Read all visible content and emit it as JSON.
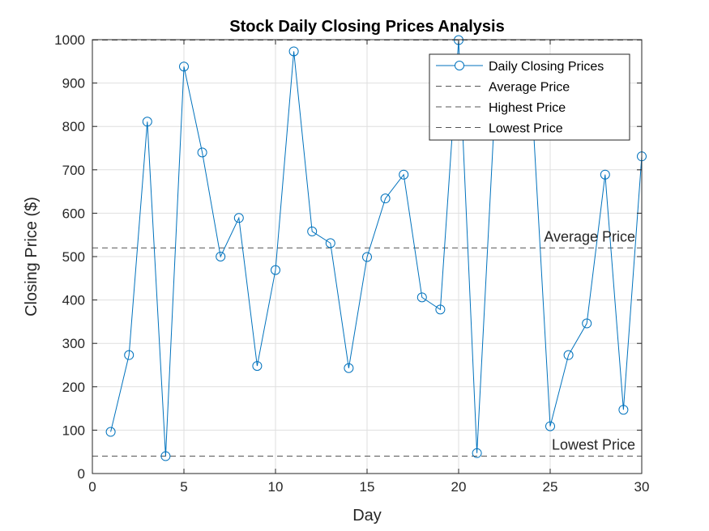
{
  "chart_data": {
    "type": "line",
    "title": "Stock Daily Closing Prices Analysis",
    "xlabel": "Day",
    "ylabel": "Closing Price ($)",
    "xlim": [
      0,
      30
    ],
    "ylim": [
      0,
      1000
    ],
    "xticks": [
      0,
      5,
      10,
      15,
      20,
      25,
      30
    ],
    "yticks": [
      0,
      100,
      200,
      300,
      400,
      500,
      600,
      700,
      800,
      900,
      1000
    ],
    "grid": true,
    "legend_location": "top-right",
    "colors": {
      "series": "#0072BD",
      "reference": "#555555"
    },
    "series": [
      {
        "name": "Daily Closing Prices",
        "marker": "circle",
        "x": [
          1,
          2,
          3,
          4,
          5,
          6,
          7,
          8,
          9,
          10,
          11,
          12,
          13,
          14,
          15,
          16,
          17,
          18,
          19,
          20,
          21,
          22,
          23,
          24,
          25,
          26,
          27,
          28,
          29,
          30
        ],
        "values": [
          96,
          273,
          811,
          40,
          938,
          740,
          500,
          589,
          248,
          469,
          973,
          558,
          531,
          243,
          499,
          634,
          689,
          406,
          378,
          999,
          47,
          860,
          875,
          860,
          109,
          273,
          346,
          689,
          147,
          731
        ]
      }
    ],
    "reference_lines": [
      {
        "name": "Average Price",
        "value": 520,
        "annotation": "Average Price"
      },
      {
        "name": "Highest Price",
        "value": 999,
        "annotation": ""
      },
      {
        "name": "Lowest Price",
        "value": 40,
        "annotation": "Lowest Price"
      }
    ],
    "legend": [
      "Daily Closing Prices",
      "Average Price",
      "Highest Price",
      "Lowest Price"
    ]
  }
}
